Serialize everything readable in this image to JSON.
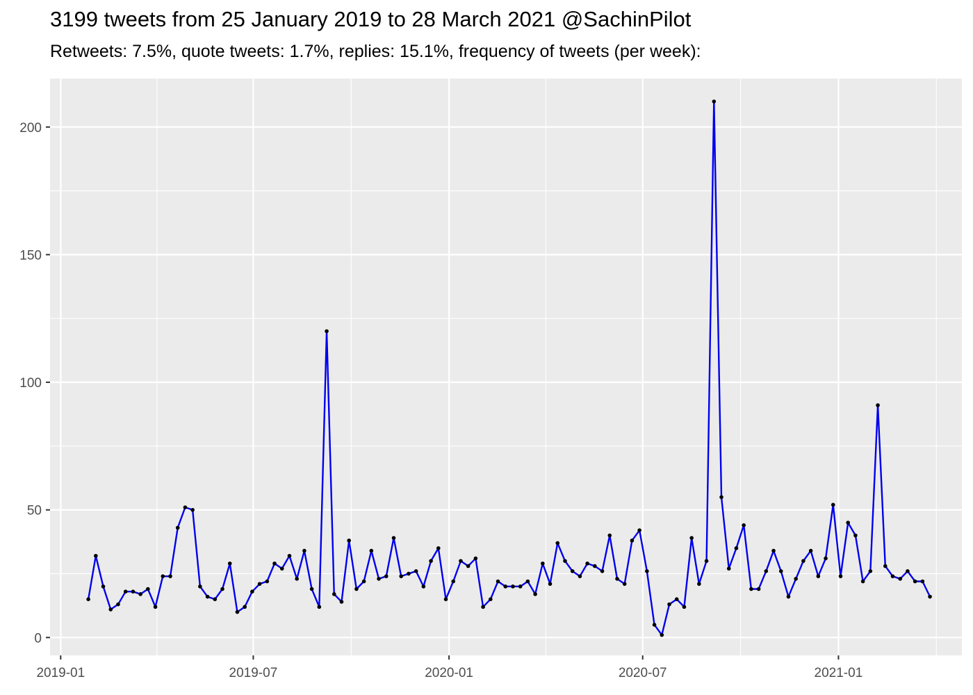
{
  "chart_data": {
    "type": "line",
    "title": "3199 tweets from 25 January 2019 to 28 March 2021 @SachinPilot",
    "subtitle": "Retweets: 7.5%, quote tweets: 1.7%, replies: 15.1%, frequency of tweets (per week):",
    "xlabel": "",
    "ylabel": "",
    "x_axis": {
      "type": "date",
      "range": [
        "2018-12-22",
        "2021-04-27"
      ],
      "ticks": [
        "2019-01",
        "2019-07",
        "2020-01",
        "2020-07",
        "2021-01"
      ],
      "tick_dates": [
        "2019-01-01",
        "2019-07-01",
        "2020-01-01",
        "2020-07-01",
        "2021-01-01"
      ]
    },
    "y_axis": {
      "range": [
        -7,
        219
      ],
      "ticks": [
        "0",
        "50",
        "100",
        "150",
        "200"
      ],
      "tick_values": [
        0,
        50,
        100,
        150,
        200
      ]
    },
    "grid": true,
    "background": "#ebebeb",
    "gridline_color": "#ffffff",
    "line_color": "#0000ee",
    "point_color": "#000000",
    "series": [
      {
        "start_date": "2019-01-27",
        "interval": "week",
        "values": [
          15,
          32,
          20,
          11,
          13,
          18,
          18,
          17,
          19,
          12,
          24,
          24,
          43,
          51,
          50,
          20,
          16,
          15,
          19,
          29,
          10,
          12,
          18,
          21,
          22,
          29,
          27,
          32,
          23,
          34,
          19,
          12,
          120,
          17,
          14,
          38,
          19,
          22,
          34,
          23,
          24,
          39,
          24,
          25,
          26,
          20,
          30,
          35,
          15,
          22,
          30,
          28,
          31,
          12,
          15,
          22,
          20,
          20,
          20,
          22,
          17,
          29,
          21,
          37,
          30,
          26,
          24,
          29,
          28,
          26,
          40,
          23,
          21,
          38,
          42,
          26,
          5,
          1,
          13,
          15,
          12,
          39,
          21,
          30,
          210,
          55,
          27,
          35,
          44,
          19,
          19,
          26,
          34,
          26,
          16,
          23,
          30,
          34,
          24,
          31,
          52,
          24,
          45,
          40,
          22,
          26,
          91,
          28,
          24,
          23,
          26,
          22,
          22,
          16
        ]
      }
    ]
  }
}
